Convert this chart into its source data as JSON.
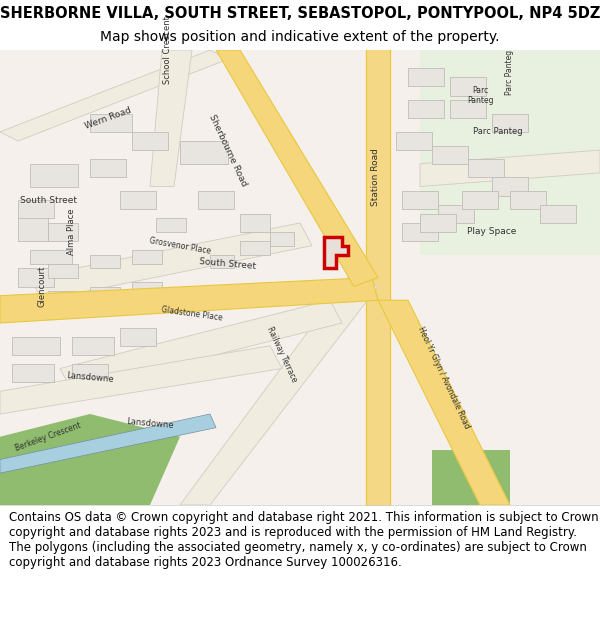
{
  "title_line1": "SHERBORNE VILLA, SOUTH STREET, SEBASTOPOL, PONTYPOOL, NP4 5DZ",
  "title_line2": "Map shows position and indicative extent of the property.",
  "footer_text": "Contains OS data © Crown copyright and database right 2021. This information is subject to Crown copyright and database rights 2023 and is reproduced with the permission of HM Land Registry. The polygons (including the associated geometry, namely x, y co-ordinates) are subject to Crown copyright and database rights 2023 Ordnance Survey 100026316.",
  "fig_width": 6.0,
  "fig_height": 6.25,
  "dpi": 100,
  "title_fontsize": 10.5,
  "subtitle_fontsize": 10,
  "footer_fontsize": 8.5,
  "map_bg_color": "#ffffff",
  "header_bg_color": "#ffffff",
  "footer_bg_color": "#ffffff",
  "road_yellow": "#f5d67a",
  "road_outline": "#e8c840",
  "building_fill": "#e8e4e0",
  "building_outline": "#c8c4c0",
  "green_park": "#8fbc6e",
  "blue_water": "#6baed6",
  "light_green": "#c8ddb8",
  "property_outline": "#cc0000",
  "property_fill": "#e8e0d8",
  "road_label_color": "#333333"
}
